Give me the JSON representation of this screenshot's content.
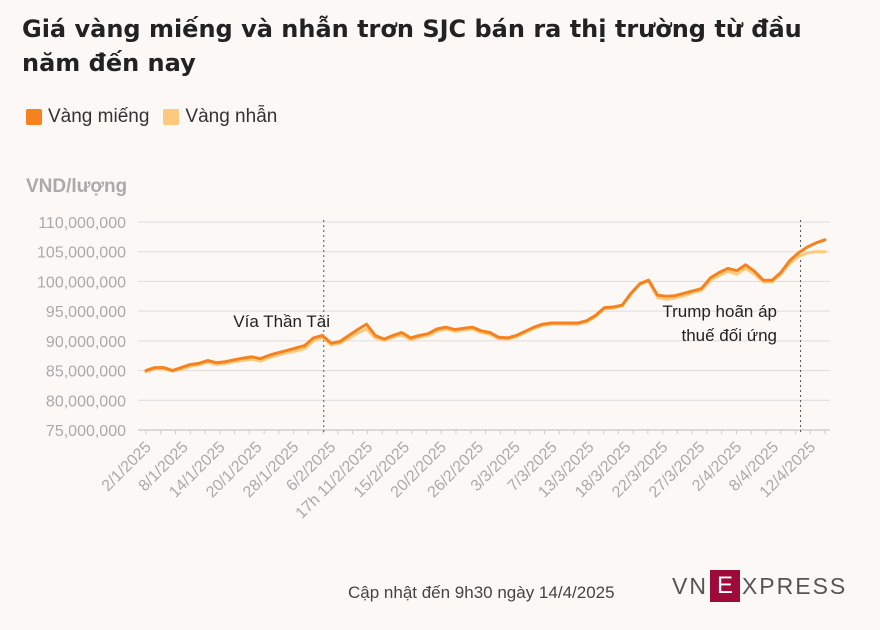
{
  "title": "Giá vàng miếng và nhẫn trơn SJC bán ra thị trường từ đầu năm đến nay",
  "legend": [
    {
      "name": "Vàng miếng",
      "color": "#f5821f"
    },
    {
      "name": "Vàng nhẫn",
      "color": "#fdca7d"
    }
  ],
  "footer": "Cập nhật đến 9h30 ngày 14/4/2025",
  "logo": {
    "left": "VN",
    "mark": "E",
    "right": "XPRESS"
  },
  "chart_data": {
    "type": "line",
    "ylabel": "VND/lượng",
    "ylim": [
      75000000,
      110000000
    ],
    "yticks": [
      {
        "value": 110000000,
        "label": "110,000,000"
      },
      {
        "value": 105000000,
        "label": "105,000,000"
      },
      {
        "value": 100000000,
        "label": "100,000,000"
      },
      {
        "value": 95000000,
        "label": "95,000,000"
      },
      {
        "value": 90000000,
        "label": "90,000,000"
      },
      {
        "value": 85000000,
        "label": "85,000,000"
      },
      {
        "value": 80000000,
        "label": "80,000,000"
      },
      {
        "value": 75000000,
        "label": "75,000,000"
      }
    ],
    "xticks": [
      {
        "index": 0,
        "label": "2/1/2025"
      },
      {
        "index": 5,
        "label": "8/1/2025"
      },
      {
        "index": 10,
        "label": "14/1/2025"
      },
      {
        "index": 15,
        "label": "20/1/2025"
      },
      {
        "index": 20,
        "label": "28/1/2025"
      },
      {
        "index": 25,
        "label": "6/2/2025"
      },
      {
        "index": 30,
        "label": "17h 11/2/2025"
      },
      {
        "index": 35,
        "label": "15/2/2025"
      },
      {
        "index": 40,
        "label": "20/2/2025"
      },
      {
        "index": 45,
        "label": "26/2/2025"
      },
      {
        "index": 50,
        "label": "3/3/2025"
      },
      {
        "index": 55,
        "label": "7/3/2025"
      },
      {
        "index": 60,
        "label": "13/3/2025"
      },
      {
        "index": 65,
        "label": "18/3/2025"
      },
      {
        "index": 70,
        "label": "22/3/2025"
      },
      {
        "index": 75,
        "label": "27/3/2025"
      },
      {
        "index": 80,
        "label": "2/4/2025"
      },
      {
        "index": 85,
        "label": "8/4/2025"
      },
      {
        "index": 90,
        "label": "12/4/2025"
      }
    ],
    "series": [
      {
        "name": "Vàng miếng",
        "color": "#f5821f",
        "values": [
          85.0,
          85.5,
          85.5,
          85.0,
          85.5,
          86.0,
          86.2,
          86.7,
          86.3,
          86.5,
          86.8,
          87.1,
          87.3,
          87.0,
          87.6,
          88.0,
          88.4,
          88.8,
          89.2,
          90.5,
          90.9,
          89.6,
          89.9,
          90.9,
          91.9,
          92.8,
          90.9,
          90.3,
          90.9,
          91.4,
          90.5,
          90.9,
          91.2,
          92.0,
          92.3,
          91.9,
          92.1,
          92.3,
          91.7,
          91.4,
          90.6,
          90.5,
          90.9,
          91.6,
          92.3,
          92.8,
          93.0,
          93.0,
          93.0,
          93.0,
          93.4,
          94.3,
          95.6,
          95.7,
          96.0,
          98.0,
          99.6,
          100.2,
          97.7,
          97.5,
          97.6,
          98.0,
          98.4,
          98.8,
          100.6,
          101.5,
          102.2,
          101.8,
          102.8,
          101.7,
          100.2,
          100.2,
          101.5,
          103.5,
          104.8,
          105.8,
          106.5,
          107.0
        ],
        "xindex": [
          0,
          1,
          2,
          3,
          4,
          5,
          6,
          7,
          8,
          9,
          10,
          11,
          12,
          13,
          14,
          15,
          16,
          17,
          18,
          19,
          20,
          21,
          22,
          23,
          24,
          25,
          26,
          27,
          28,
          29,
          30,
          31,
          32,
          33,
          34,
          35,
          36,
          37,
          38,
          39,
          40,
          41,
          42,
          43,
          44,
          45,
          46,
          47,
          48,
          49,
          50,
          51,
          52,
          53,
          54,
          55,
          56,
          57,
          58,
          59,
          60,
          61,
          62,
          63,
          64,
          65,
          66,
          67,
          68,
          69,
          70,
          71,
          72,
          73,
          74,
          75,
          76,
          77
        ]
      },
      {
        "name": "Vàng nhẫn",
        "color": "#fdca7d",
        "values": [
          84.8,
          85.3,
          85.3,
          84.9,
          85.2,
          85.7,
          86.0,
          86.4,
          86.0,
          86.2,
          86.5,
          86.7,
          86.9,
          86.6,
          87.2,
          87.6,
          88.0,
          88.3,
          88.7,
          90.0,
          90.6,
          89.3,
          89.6,
          90.4,
          91.3,
          92.0,
          90.5,
          90.1,
          90.6,
          91.0,
          90.2,
          90.6,
          90.9,
          91.6,
          92.0,
          91.6,
          91.8,
          92.0,
          91.4,
          91.1,
          90.4,
          90.3,
          90.7,
          91.4,
          92.1,
          92.6,
          92.8,
          92.8,
          92.8,
          92.8,
          93.2,
          94.1,
          95.4,
          95.5,
          95.9,
          97.9,
          99.5,
          100.1,
          97.3,
          97.0,
          97.2,
          97.6,
          98.1,
          98.5,
          100.2,
          101.0,
          101.7,
          101.2,
          102.2,
          101.2,
          99.9,
          99.9,
          101.2,
          103.0,
          104.2,
          104.8,
          105.0,
          105.0
        ],
        "xindex": [
          0,
          1,
          2,
          3,
          4,
          5,
          6,
          7,
          8,
          9,
          10,
          11,
          12,
          13,
          14,
          15,
          16,
          17,
          18,
          19,
          20,
          21,
          22,
          23,
          24,
          25,
          26,
          27,
          28,
          29,
          30,
          31,
          32,
          33,
          34,
          35,
          36,
          37,
          38,
          39,
          40,
          41,
          42,
          43,
          44,
          45,
          46,
          47,
          48,
          49,
          50,
          51,
          52,
          53,
          54,
          55,
          56,
          57,
          58,
          59,
          60,
          61,
          62,
          63,
          64,
          65,
          66,
          67,
          68,
          69,
          70,
          71,
          72,
          73,
          74,
          75,
          76,
          77
        ]
      }
    ],
    "annotations": [
      {
        "xindex": 23,
        "label": "Vía Thần Tài",
        "lines": [
          "Vía Thần Tài"
        ]
      },
      {
        "xindex": 75,
        "label": "Trump hoãn áp thuế đối ứng",
        "lines": [
          "Trump hoãn áp",
          "thuế đối ứng"
        ]
      }
    ]
  }
}
